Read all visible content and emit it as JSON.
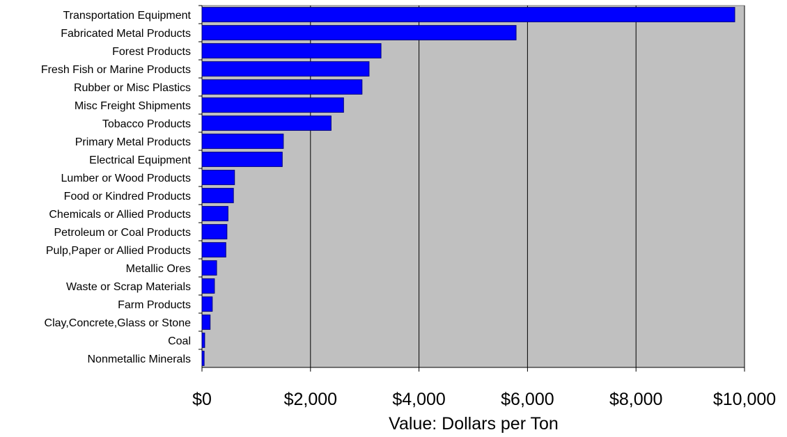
{
  "chart_data": {
    "type": "bar",
    "orientation": "horizontal",
    "title": "",
    "xlabel": "Value: Dollars per Ton",
    "ylabel": "",
    "xlim": [
      0,
      10000
    ],
    "x_ticks": [
      0,
      2000,
      4000,
      6000,
      8000,
      10000
    ],
    "x_tick_labels": [
      "$0",
      "$2,000",
      "$4,000",
      "$6,000",
      "$8,000",
      "$10,000"
    ],
    "grid": "vertical gridlines at major ticks",
    "legend": "none",
    "categories": [
      "Transportation Equipment",
      "Fabricated Metal Products",
      "Forest Products",
      "Fresh Fish or Marine Products",
      "Rubber or Misc Plastics",
      "Misc Freight Shipments",
      "Tobacco Products",
      "Primary Metal Products",
      "Electrical Equipment",
      "Lumber or Wood Products",
      "Food or Kindred Products",
      "Chemicals or Allied Products",
      "Petroleum or Coal Products",
      "Pulp,Paper or Allied Products",
      "Metallic Ores",
      "Waste or Scrap Materials",
      "Farm Products",
      "Clay,Concrete,Glass or Stone",
      "Coal",
      "Nonmetallic Minerals"
    ],
    "values": [
      9820,
      5790,
      3300,
      3080,
      2950,
      2610,
      2380,
      1500,
      1480,
      600,
      580,
      480,
      460,
      440,
      270,
      230,
      190,
      150,
      50,
      40
    ]
  },
  "colors": {
    "bar_fill": "#0000ff",
    "bar_stroke": "#000080",
    "plot_background": "#c0c0c0",
    "gridline": "#000000"
  }
}
